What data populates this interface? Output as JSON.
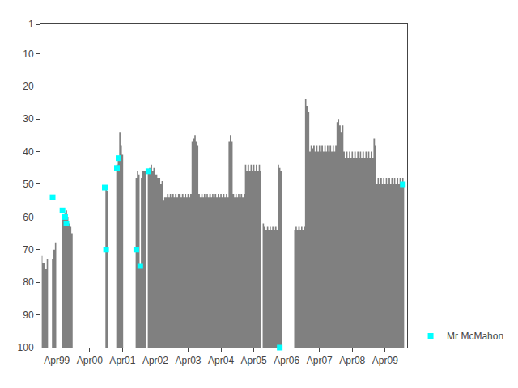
{
  "chart_data": {
    "type": "area",
    "xlim": [
      1998.75,
      2009.92
    ],
    "ylim": [
      100,
      1
    ],
    "xticks": [
      {
        "value": 1999.25,
        "label": "Apr99"
      },
      {
        "value": 2000.25,
        "label": "Apr00"
      },
      {
        "value": 2001.25,
        "label": "Apr01"
      },
      {
        "value": 2002.25,
        "label": "Apr02"
      },
      {
        "value": 2003.25,
        "label": "Apr03"
      },
      {
        "value": 2004.25,
        "label": "Apr04"
      },
      {
        "value": 2005.25,
        "label": "Apr05"
      },
      {
        "value": 2006.25,
        "label": "Apr06"
      },
      {
        "value": 2007.25,
        "label": "Apr07"
      },
      {
        "value": 2008.25,
        "label": "Apr08"
      },
      {
        "value": 2009.25,
        "label": "Apr09"
      }
    ],
    "yticks": [
      1,
      10,
      20,
      30,
      40,
      50,
      60,
      70,
      80,
      90,
      100
    ],
    "grid": false,
    "legend": "lower right",
    "series": [
      {
        "type": "area",
        "color": "#808080",
        "x": [
          1998.79,
          1998.83,
          1998.87,
          1998.92,
          1998.96,
          1999.0,
          1999.04,
          1999.08,
          1999.12,
          1999.17,
          1999.21,
          1999.25,
          1999.29,
          1999.33,
          1999.38,
          1999.42,
          1999.46,
          1999.5,
          1999.54,
          1999.58,
          1999.62,
          1999.67,
          1999.71,
          1999.75,
          1999.79,
          1999.83,
          1999.87,
          1999.92,
          1999.96,
          2000.0,
          2000.04,
          2000.08,
          2000.13,
          2000.17,
          2000.21,
          2000.25,
          2000.29,
          2000.33,
          2000.38,
          2000.42,
          2000.46,
          2000.5,
          2000.54,
          2000.58,
          2000.63,
          2000.67,
          2000.71,
          2000.75,
          2000.79,
          2000.83,
          2000.87,
          2000.92,
          2000.96,
          2001.0,
          2001.04,
          2001.08,
          2001.13,
          2001.17,
          2001.21,
          2001.25,
          2001.29,
          2001.33,
          2001.38,
          2001.42,
          2001.46,
          2001.5,
          2001.54,
          2001.58,
          2001.63,
          2001.67,
          2001.71,
          2001.75,
          2001.79,
          2001.83,
          2001.87,
          2001.92,
          2001.96,
          2002.0,
          2002.04,
          2002.08,
          2002.13,
          2002.17,
          2002.21,
          2002.25,
          2002.29,
          2002.33,
          2002.38,
          2002.42,
          2002.46,
          2002.5,
          2002.54,
          2002.58,
          2002.63,
          2002.67,
          2002.71,
          2002.75,
          2002.79,
          2002.83,
          2002.87,
          2002.92,
          2002.96,
          2003.0,
          2003.04,
          2003.08,
          2003.13,
          2003.17,
          2003.21,
          2003.25,
          2003.29,
          2003.33,
          2003.38,
          2003.42,
          2003.46,
          2003.5,
          2003.54,
          2003.58,
          2003.63,
          2003.67,
          2003.71,
          2003.75,
          2003.79,
          2003.83,
          2003.87,
          2003.92,
          2003.96,
          2004.0,
          2004.04,
          2004.08,
          2004.13,
          2004.17,
          2004.21,
          2004.25,
          2004.29,
          2004.33,
          2004.38,
          2004.42,
          2004.46,
          2004.5,
          2004.54,
          2004.58,
          2004.63,
          2004.67,
          2004.71,
          2004.75,
          2004.79,
          2004.83,
          2004.87,
          2004.92,
          2004.96,
          2005.0,
          2005.04,
          2005.08,
          2005.13,
          2005.17,
          2005.21,
          2005.25,
          2005.29,
          2005.33,
          2005.38,
          2005.42,
          2005.46,
          2005.5,
          2005.54,
          2005.58,
          2005.63,
          2005.67,
          2005.71,
          2005.75,
          2005.79,
          2005.83,
          2005.87,
          2005.92,
          2005.96,
          2006.0,
          2006.04,
          2006.08,
          2006.13,
          2006.17,
          2006.21,
          2006.25,
          2006.29,
          2006.33,
          2006.38,
          2006.42,
          2006.46,
          2006.5,
          2006.54,
          2006.58,
          2006.63,
          2006.67,
          2006.71,
          2006.75,
          2006.79,
          2006.83,
          2006.87,
          2006.92,
          2006.96,
          2007.0,
          2007.04,
          2007.08,
          2007.13,
          2007.17,
          2007.21,
          2007.25,
          2007.29,
          2007.33,
          2007.38,
          2007.42,
          2007.46,
          2007.5,
          2007.54,
          2007.58,
          2007.63,
          2007.67,
          2007.71,
          2007.75,
          2007.79,
          2007.83,
          2007.87,
          2007.92,
          2007.96,
          2008.0,
          2008.04,
          2008.08,
          2008.13,
          2008.17,
          2008.21,
          2008.25,
          2008.29,
          2008.33,
          2008.38,
          2008.42,
          2008.46,
          2008.5,
          2008.54,
          2008.58,
          2008.63,
          2008.67,
          2008.71,
          2008.75,
          2008.79,
          2008.83,
          2008.87,
          2008.92,
          2008.96,
          2009.0,
          2009.04,
          2009.08,
          2009.13,
          2009.17,
          2009.21,
          2009.25,
          2009.29,
          2009.33,
          2009.38,
          2009.42,
          2009.46,
          2009.5,
          2009.54,
          2009.58,
          2009.63,
          2009.67,
          2009.71,
          2009.75,
          2009.79,
          2009.83
        ],
        "values": [
          72,
          74,
          74,
          76,
          73,
          100,
          100,
          100,
          73,
          70,
          68,
          100,
          100,
          100,
          100,
          60,
          60,
          59,
          58,
          60,
          62,
          63,
          65,
          100,
          100,
          100,
          100,
          100,
          100,
          100,
          100,
          100,
          100,
          100,
          100,
          100,
          100,
          100,
          100,
          100,
          100,
          100,
          100,
          100,
          100,
          100,
          100,
          51,
          52,
          100,
          100,
          100,
          100,
          100,
          100,
          44,
          42,
          34,
          38,
          41,
          100,
          100,
          100,
          100,
          100,
          100,
          100,
          100,
          100,
          48,
          46,
          47,
          75,
          48,
          46,
          46,
          46,
          100,
          46,
          45,
          44,
          46,
          45,
          47,
          47,
          48,
          48,
          50,
          49,
          55,
          54,
          54,
          53,
          54,
          53,
          54,
          53,
          54,
          53,
          54,
          53,
          53,
          54,
          53,
          54,
          53,
          54,
          53,
          54,
          53,
          37,
          36,
          35,
          37,
          38,
          53,
          54,
          53,
          54,
          53,
          54,
          53,
          54,
          53,
          54,
          53,
          54,
          53,
          54,
          53,
          54,
          53,
          54,
          53,
          54,
          53,
          54,
          37,
          35,
          37,
          53,
          54,
          53,
          54,
          53,
          54,
          53,
          54,
          53,
          44,
          46,
          44,
          46,
          44,
          46,
          44,
          46,
          44,
          46,
          44,
          46,
          100,
          62,
          63,
          64,
          63,
          64,
          63,
          64,
          63,
          64,
          63,
          64,
          44,
          45,
          46,
          100,
          100,
          100,
          100,
          100,
          100,
          100,
          100,
          100,
          64,
          63,
          64,
          63,
          64,
          63,
          64,
          63,
          24,
          26,
          28,
          40,
          38,
          39,
          38,
          40,
          38,
          40,
          38,
          40,
          38,
          40,
          38,
          40,
          38,
          40,
          38,
          40,
          38,
          40,
          38,
          31,
          30,
          32,
          34,
          32,
          40,
          42,
          40,
          42,
          40,
          42,
          40,
          42,
          40,
          42,
          40,
          42,
          40,
          42,
          40,
          42,
          40,
          42,
          40,
          42,
          40,
          42,
          36,
          38,
          50,
          48,
          50,
          48,
          50,
          48,
          50,
          48,
          50,
          48,
          50,
          48,
          50,
          48,
          50,
          48,
          50,
          48,
          50,
          48,
          50
        ]
      },
      {
        "type": "scatter",
        "name": "Mr McMahon",
        "color": "#00ffff",
        "marker": "square",
        "x": [
          1999.12,
          1999.42,
          1999.5,
          1999.54,
          2000.71,
          2000.75,
          2001.08,
          2001.13,
          2001.67,
          2001.79,
          2002.04,
          2006.04,
          2009.79
        ],
        "values": [
          54,
          58,
          60,
          62,
          51,
          70,
          45,
          42,
          70,
          75,
          46,
          100,
          50
        ]
      }
    ]
  }
}
